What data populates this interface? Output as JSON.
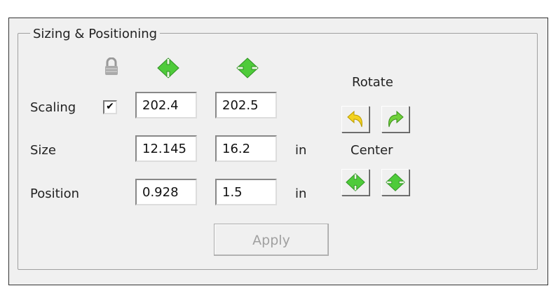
{
  "group_title": "Sizing & Positioning",
  "rows": {
    "scaling": "Scaling",
    "size": "Size",
    "position": "Position"
  },
  "scaling": {
    "locked": true,
    "width": "202.4",
    "height": "202.5"
  },
  "size": {
    "width": "12.145",
    "height": "16.2",
    "unit": "in"
  },
  "position": {
    "x": "0.928",
    "y": "1.5",
    "unit": "in"
  },
  "rotate_label": "Rotate",
  "center_label": "Center",
  "apply_label": "Apply",
  "icons": [
    "lock-icon",
    "horizontal-diamond-icon",
    "vertical-diamond-icon",
    "rotate-left-icon",
    "rotate-right-icon"
  ],
  "colors": {
    "green": "#4ecb3a",
    "yellow": "#f3d21e"
  }
}
